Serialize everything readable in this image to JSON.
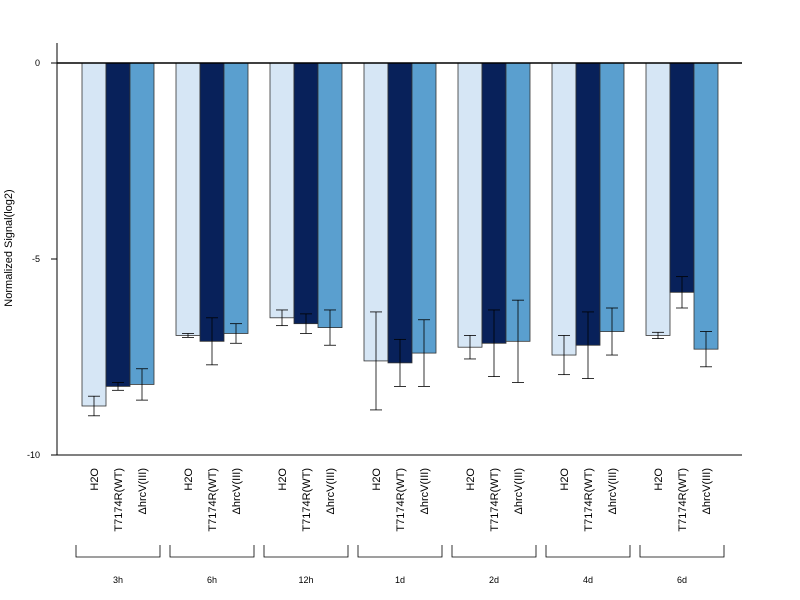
{
  "chart_data": {
    "type": "bar",
    "ylabel": "Normalized Signal(log2)",
    "ylim": [
      -10,
      0.5
    ],
    "yticks": [
      {
        "value": 0,
        "label": "0"
      },
      {
        "value": -5,
        "label": "-5"
      },
      {
        "value": -10,
        "label": "-10"
      }
    ],
    "bar_labels": [
      "H2O",
      "T7174R(WT)",
      "ΔhrcV(III)"
    ],
    "categories": [
      "3h",
      "6h",
      "12h",
      "1d",
      "2d",
      "4d",
      "6d"
    ],
    "series": [
      {
        "name": "H2O",
        "color": "#d6e6f5",
        "values": [
          -8.75,
          -6.95,
          -6.5,
          -7.6,
          -7.25,
          -7.45,
          -6.95
        ],
        "errors": [
          0.25,
          0.05,
          0.2,
          1.25,
          0.3,
          0.5,
          0.08
        ]
      },
      {
        "name": "T7174R(WT)",
        "color": "#08215a",
        "values": [
          -8.25,
          -7.1,
          -6.65,
          -7.65,
          -7.15,
          -7.2,
          -5.85
        ],
        "errors": [
          0.1,
          0.6,
          0.25,
          0.6,
          0.85,
          0.85,
          0.4
        ]
      },
      {
        "name": "ΔhrcV(III)",
        "color": "#5a9fcf",
        "values": [
          -8.2,
          -6.9,
          -6.75,
          -7.4,
          -7.1,
          -6.85,
          -7.3
        ],
        "errors": [
          0.4,
          0.25,
          0.45,
          0.85,
          1.05,
          0.6,
          0.45
        ]
      }
    ],
    "grid": false,
    "legend": "none"
  }
}
